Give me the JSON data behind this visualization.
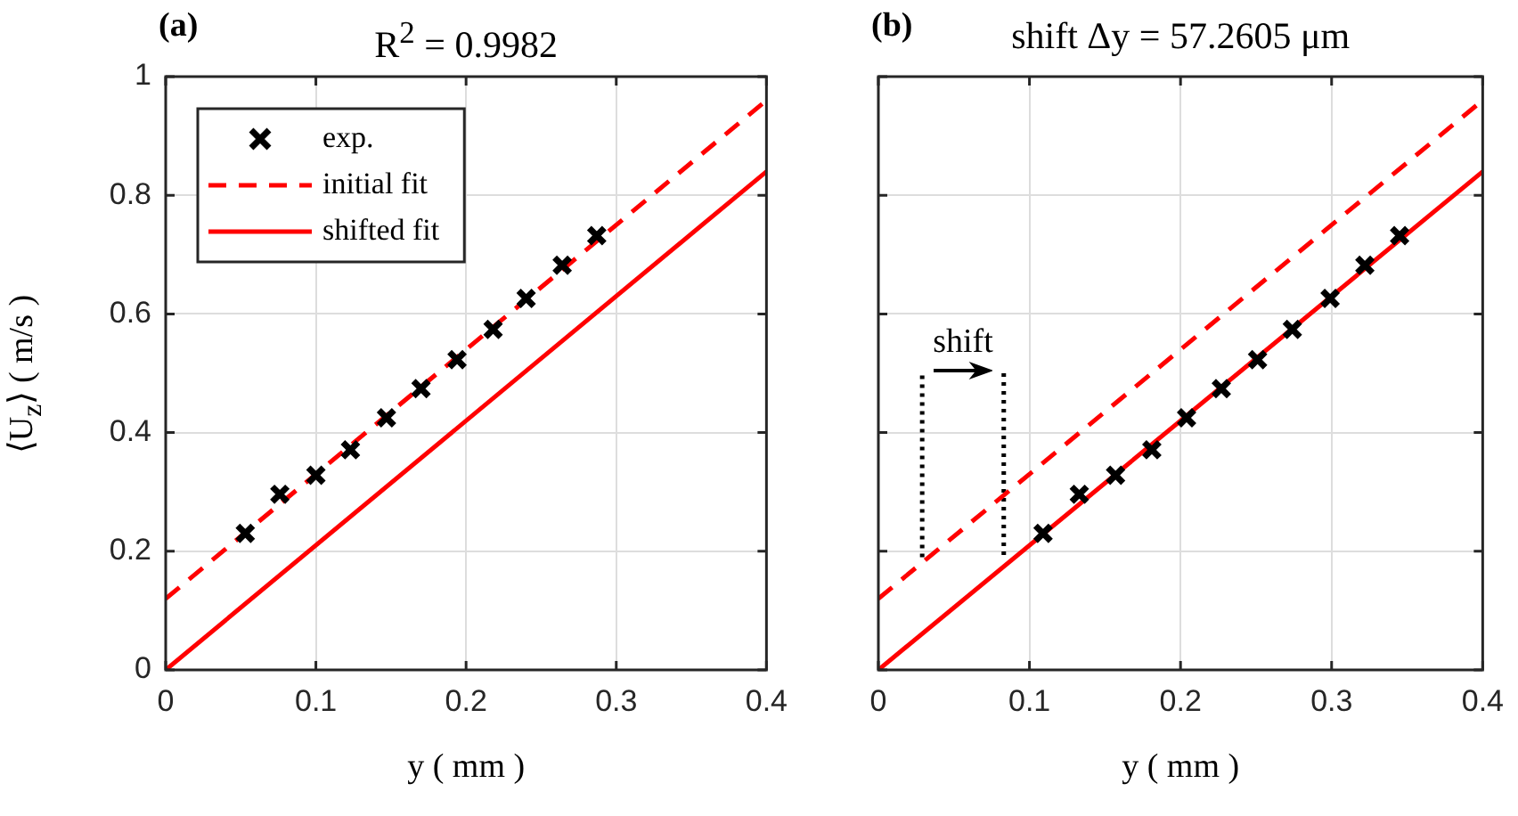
{
  "chart_data": [
    {
      "type": "scatter",
      "title": "R$^{2}$ = 0.9982",
      "xlabel": "y ( mm )",
      "ylabel": "⟨U$_{z}$⟩ ( m/s )",
      "annotations": [
        "(a)"
      ],
      "xlim": [
        0,
        0.4
      ],
      "xticks": [
        0,
        0.1,
        0.2,
        0.3,
        0.4
      ],
      "ylim": [
        0,
        1
      ],
      "yticks": [
        0,
        0.2,
        0.4,
        0.6,
        0.8,
        1
      ],
      "grid": true,
      "legend": "top left",
      "series": [
        {
          "name": "exp.",
          "type": "scatter",
          "color": "#000000",
          "marker": "cross",
          "x": [
            0.053,
            0.076,
            0.1,
            0.123,
            0.147,
            0.17,
            0.194,
            0.218,
            0.24,
            0.264,
            0.287
          ],
          "values": [
            0.23,
            0.296,
            0.328,
            0.371,
            0.425,
            0.474,
            0.523,
            0.574,
            0.626,
            0.682,
            0.732
          ]
        },
        {
          "name": "initial fit",
          "type": "line",
          "color": "#ff0000",
          "line_style": "dashed",
          "x": [
            0,
            0.4
          ],
          "values": [
            0.12,
            0.96
          ]
        },
        {
          "name": "shifted fit",
          "type": "line",
          "color": "#ff0000",
          "line_style": "solid",
          "x": [
            0,
            0.4
          ],
          "values": [
            0,
            0.84
          ]
        }
      ]
    },
    {
      "type": "scatter",
      "title": "shift Δy = 57.2605 μm",
      "xlabel": "y ( mm )",
      "annotations": [
        "(b)",
        {
          "text": "shift",
          "x": 0.056,
          "y": 0.505
        }
      ],
      "xlim": [
        0,
        0.4
      ],
      "xticks": [
        0,
        0.1,
        0.2,
        0.3,
        0.4
      ],
      "ylim": [
        0,
        1
      ],
      "yticks": [
        0,
        0.2,
        0.4,
        0.6,
        0.8,
        1
      ],
      "grid": true,
      "tick_labels": "x",
      "series": [
        {
          "type": "scatter",
          "color": "#000000",
          "marker": "cross",
          "x": [
            0.109,
            0.133,
            0.157,
            0.181,
            0.204,
            0.227,
            0.251,
            0.274,
            0.299,
            0.322,
            0.345
          ],
          "values": [
            0.23,
            0.296,
            0.328,
            0.371,
            0.425,
            0.474,
            0.523,
            0.574,
            0.626,
            0.682,
            0.732
          ]
        },
        {
          "type": "line",
          "color": "#ff0000",
          "line_style": "dashed",
          "x": [
            0,
            0.4
          ],
          "values": [
            0.12,
            0.96
          ]
        },
        {
          "type": "line",
          "color": "#ff0000",
          "line_style": "solid",
          "x": [
            0,
            0.4
          ],
          "values": [
            0,
            0.84
          ]
        },
        {
          "type": "line",
          "color": "#000000",
          "line_style": "dotted",
          "x": [
            0.029,
            0.029,
            0.056,
            0.083,
            0.083
          ],
          "values": [
            0.19,
            0.5,
            null,
            0.5,
            0.19
          ]
        }
      ]
    }
  ]
}
